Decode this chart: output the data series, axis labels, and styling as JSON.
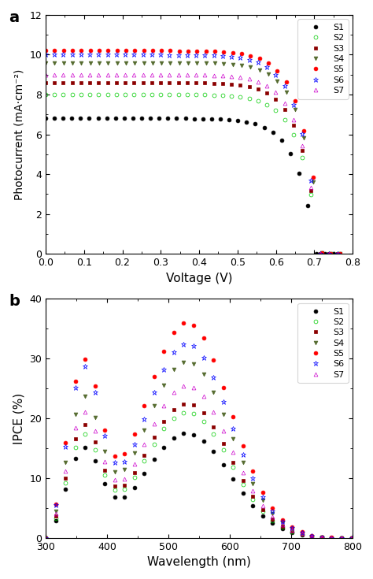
{
  "panel_a": {
    "title": "a",
    "xlabel": "Voltage (V)",
    "ylabel": "Photocurrent (mA·cm⁻²)",
    "xlim": [
      0.0,
      0.8
    ],
    "ylim": [
      0,
      12
    ],
    "yticks": [
      0,
      2,
      4,
      6,
      8,
      10,
      12
    ],
    "xticks": [
      0.0,
      0.1,
      0.2,
      0.3,
      0.4,
      0.5,
      0.6,
      0.7,
      0.8
    ],
    "series": [
      {
        "label": "S1",
        "color": "#000000",
        "marker": "o",
        "fillstyle": "full",
        "Jsc": 6.8,
        "Voc": 0.705,
        "FF": 0.62
      },
      {
        "label": "S2",
        "color": "#00cc00",
        "marker": "o",
        "fillstyle": "none",
        "Jsc": 8.0,
        "Voc": 0.715,
        "FF": 0.63
      },
      {
        "label": "S3",
        "color": "#8b0000",
        "marker": "s",
        "fillstyle": "full",
        "Jsc": 8.6,
        "Voc": 0.715,
        "FF": 0.63
      },
      {
        "label": "S4",
        "color": "#556b2f",
        "marker": "v",
        "fillstyle": "full",
        "Jsc": 9.6,
        "Voc": 0.72,
        "FF": 0.63
      },
      {
        "label": "S5",
        "color": "#ff0000",
        "marker": "o",
        "fillstyle": "full",
        "Jsc": 10.2,
        "Voc": 0.72,
        "FF": 0.64
      },
      {
        "label": "S6",
        "color": "#0000ff",
        "marker": "*",
        "fillstyle": "none",
        "Jsc": 10.0,
        "Voc": 0.715,
        "FF": 0.63
      },
      {
        "label": "S7",
        "color": "#cc00cc",
        "marker": "^",
        "fillstyle": "none",
        "Jsc": 9.0,
        "Voc": 0.715,
        "FF": 0.63
      }
    ]
  },
  "panel_b": {
    "title": "b",
    "xlabel": "Wavelength (nm)",
    "ylabel": "IPCE (%)",
    "xlim": [
      300,
      800
    ],
    "ylim": [
      0,
      40
    ],
    "yticks": [
      0,
      10,
      20,
      30,
      40
    ],
    "xticks": [
      300,
      400,
      500,
      600,
      700,
      800
    ],
    "series": [
      {
        "label": "S1",
        "color": "#000000",
        "marker": "o",
        "fillstyle": "full",
        "peak1": 14.5,
        "peak2": 17.5
      },
      {
        "label": "S2",
        "color": "#00cc00",
        "marker": "o",
        "fillstyle": "none",
        "peak1": 16.5,
        "peak2": 21.0
      },
      {
        "label": "S3",
        "color": "#8b0000",
        "marker": "s",
        "fillstyle": "full",
        "peak1": 18.0,
        "peak2": 22.5
      },
      {
        "label": "S4",
        "color": "#556b2f",
        "marker": "v",
        "fillstyle": "full",
        "peak1": 22.5,
        "peak2": 29.5
      },
      {
        "label": "S5",
        "color": "#ff0000",
        "marker": "o",
        "fillstyle": "full",
        "peak1": 28.5,
        "peak2": 36.0
      },
      {
        "label": "S6",
        "color": "#0000ff",
        "marker": "*",
        "fillstyle": "none",
        "peak1": 27.5,
        "peak2": 32.5
      },
      {
        "label": "S7",
        "color": "#cc00cc",
        "marker": "^",
        "fillstyle": "none",
        "peak1": 20.0,
        "peak2": 25.5
      }
    ]
  }
}
